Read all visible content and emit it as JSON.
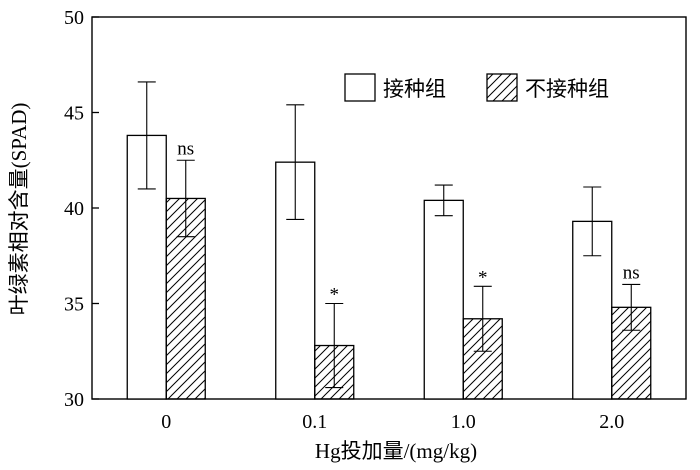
{
  "chart_data": {
    "type": "bar",
    "categories": [
      "0",
      "0.1",
      "1.0",
      "2.0"
    ],
    "series": [
      {
        "name": "接种组",
        "pattern": "none",
        "values": [
          43.8,
          42.4,
          40.4,
          39.3
        ],
        "errors": [
          2.8,
          3.0,
          0.8,
          1.8
        ],
        "significance": [
          "",
          "",
          "",
          ""
        ]
      },
      {
        "name": "不接种组",
        "pattern": "hatched",
        "values": [
          40.5,
          32.8,
          34.2,
          34.8
        ],
        "errors": [
          2.0,
          2.2,
          1.7,
          1.2
        ],
        "significance": [
          "ns",
          "*",
          "*",
          "ns"
        ]
      }
    ],
    "xlabel": "Hg投加量/(mg/kg)",
    "ylabel": "叶绿素相对含量(SPAD)",
    "ylim": [
      30,
      50
    ],
    "yticks": [
      30,
      35,
      40,
      45,
      50
    ],
    "grid": false,
    "legend_position": "top-right",
    "colors": {
      "bar_fill": "#ffffff",
      "stroke": "#000000",
      "hatch": "#000000"
    }
  }
}
